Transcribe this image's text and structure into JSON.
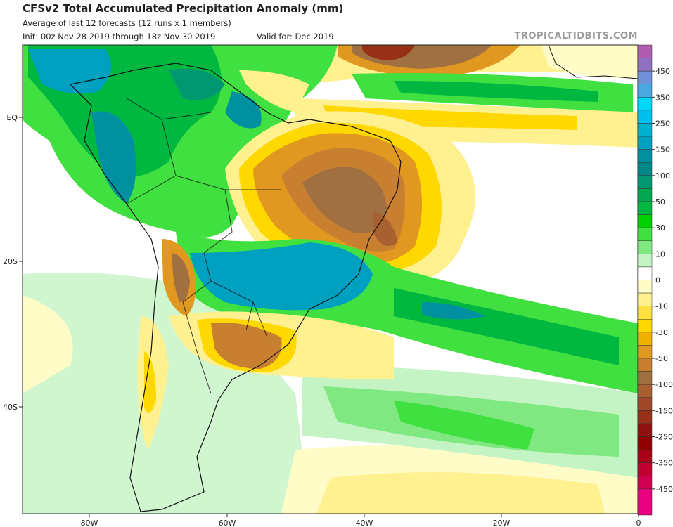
{
  "header": {
    "title": "CFSv2 Total Accumulated Precipitation Anomaly (mm)",
    "subtitle": "Average of last 12 forecasts (12 runs x 1 members)",
    "init": "Init: 00z Nov 28 2019 through 18z Nov 30 2019",
    "valid": "Valid for: Dec 2019",
    "watermark": "TROPICALTIDBITS.COM"
  },
  "axes": {
    "x_ticks": [
      "80W",
      "60W",
      "40W",
      "20W",
      "0"
    ],
    "y_ticks": [
      "EQ",
      "20S",
      "40S"
    ]
  },
  "colorbar": {
    "unit": "mm",
    "labels": [
      "450",
      "350",
      "250",
      "150",
      "100",
      "50",
      "30",
      "10",
      "0",
      "-10",
      "-30",
      "-50",
      "-100",
      "-150",
      "-250",
      "-350",
      "-450"
    ],
    "colors": [
      "#b05cb0",
      "#9070c0",
      "#7090d8",
      "#4aa8e0",
      "#00d8f8",
      "#00c0f0",
      "#00b0d0",
      "#00a0c0",
      "#0090a0",
      "#008888",
      "#009870",
      "#00a850",
      "#00b840",
      "#00d000",
      "#40e040",
      "#80e880",
      "#c4f4c4",
      "#ffffff",
      "#fffcc8",
      "#fff090",
      "#ffe040",
      "#ffd800",
      "#f0b000",
      "#e09820",
      "#c88030",
      "#a07040",
      "#a86030",
      "#a04828",
      "#983018",
      "#901010",
      "#900000",
      "#a80018",
      "#c00030",
      "#d00050",
      "#e80080",
      "#e80080"
    ]
  }
}
